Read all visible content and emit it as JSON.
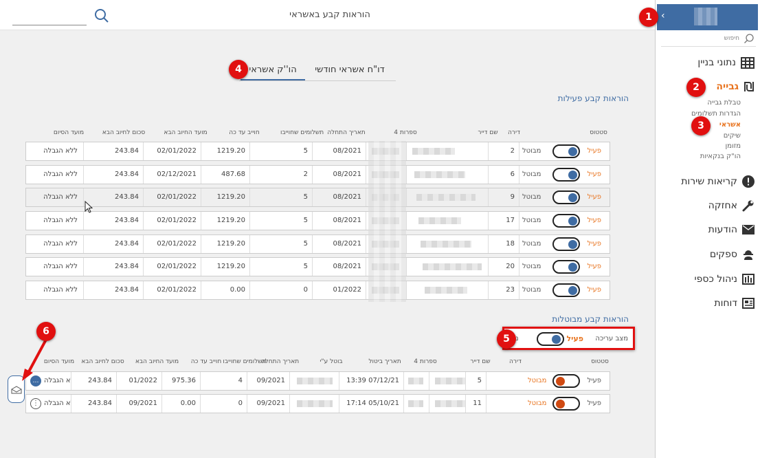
{
  "header": {
    "title": "הוראות קבע באשראי",
    "search_placeholder": ""
  },
  "sidebar": {
    "search_label": "חיפוש",
    "items": [
      {
        "label": "נתוני בניין",
        "icon": "building-icon"
      },
      {
        "label": "גבייה",
        "icon": "shekel-icon",
        "active": true
      },
      {
        "label": "קריאות שירות",
        "icon": "exclamation-icon"
      },
      {
        "label": "אחזקה",
        "icon": "wrench-icon"
      },
      {
        "label": "הודעות",
        "icon": "envelope-icon"
      },
      {
        "label": "ספקים",
        "icon": "worker-icon"
      },
      {
        "label": "ניהול כספי",
        "icon": "ledger-icon"
      },
      {
        "label": "דוחות",
        "icon": "report-icon"
      }
    ],
    "sub_items": [
      "טבלת גבייה",
      "הגדרות תשלומים",
      "אשראי",
      "שיקים",
      "מזומן",
      "הו\"ק בנקאיות"
    ]
  },
  "tabs": [
    "דו\"ח אשראי חודשי",
    "הו''ק אשראי"
  ],
  "active_section": {
    "title": "הוראות קבע פעילות",
    "headers": [
      "סטטוס",
      "דירה",
      "שם דייר",
      "4 ספרות",
      "תאריך התחלה",
      "תשלומים שחוייבו",
      "חוייב עד כה",
      "מועד החיוב הבא",
      "סכום לחיוב הבא",
      "מועד הסיום"
    ],
    "status_on": "פעיל",
    "status_off": "מבוטל",
    "rows": [
      {
        "apt": "2",
        "start": "08/2021",
        "paid": "5",
        "total": "1219.20",
        "next_date": "02/01/2022",
        "next_amount": "243.84",
        "end": "ללא הגבלה"
      },
      {
        "apt": "6",
        "start": "08/2021",
        "paid": "2",
        "total": "487.68",
        "next_date": "02/12/2021",
        "next_amount": "243.84",
        "end": "ללא הגבלה"
      },
      {
        "apt": "9",
        "start": "08/2021",
        "paid": "5",
        "total": "1219.20",
        "next_date": "02/01/2022",
        "next_amount": "243.84",
        "end": "ללא הגבלה"
      },
      {
        "apt": "17",
        "start": "08/2021",
        "paid": "5",
        "total": "1219.20",
        "next_date": "02/01/2022",
        "next_amount": "243.84",
        "end": "ללא הגבלה"
      },
      {
        "apt": "18",
        "start": "08/2021",
        "paid": "5",
        "total": "1219.20",
        "next_date": "02/01/2022",
        "next_amount": "243.84",
        "end": "ללא הגבלה"
      },
      {
        "apt": "20",
        "start": "08/2021",
        "paid": "5",
        "total": "1219.20",
        "next_date": "02/01/2022",
        "next_amount": "243.84",
        "end": "ללא הגבלה"
      },
      {
        "apt": "23",
        "start": "01/2022",
        "paid": "0",
        "total": "0.00",
        "next_date": "02/01/2022",
        "next_amount": "243.84",
        "end": "ללא הגבלה"
      }
    ]
  },
  "cancelled_section": {
    "title": "הוראות קבע מבוטלות",
    "filter": {
      "mode_label": "מצב עריכה",
      "active_label": "פעיל",
      "locked_label": "נעול"
    },
    "headers": [
      "סטטוס",
      "דירה",
      "שם דייר",
      "4 ספרות",
      "תאריך ביטול",
      "בוטל ע\"י",
      "תאריך התחלה",
      "תשלומים שחוייבו",
      "חוייב עד כה",
      "מועד החיוב הבא",
      "סכום לחיוב הבא",
      "מועד הסיום"
    ],
    "status_on": "פעיל",
    "status_off": "מבוטל",
    "rows": [
      {
        "apt": "5",
        "cancel_date": "13:39 07/12/21",
        "start": "09/2021",
        "paid": "4",
        "total": "975.36",
        "next_date": "01/2022",
        "next_amount": "243.84",
        "end": "ללא הגבלה"
      },
      {
        "apt": "11",
        "cancel_date": "17:14 05/10/21",
        "start": "09/2021",
        "paid": "0",
        "total": "0.00",
        "next_date": "09/2021",
        "next_amount": "243.84",
        "end": "ללא הגבלה"
      }
    ]
  },
  "annotations": [
    "1",
    "2",
    "3",
    "4",
    "5",
    "6"
  ],
  "colors": {
    "accent": "#3f6ca3",
    "orange": "#e8731e",
    "badge": "#e11010"
  }
}
